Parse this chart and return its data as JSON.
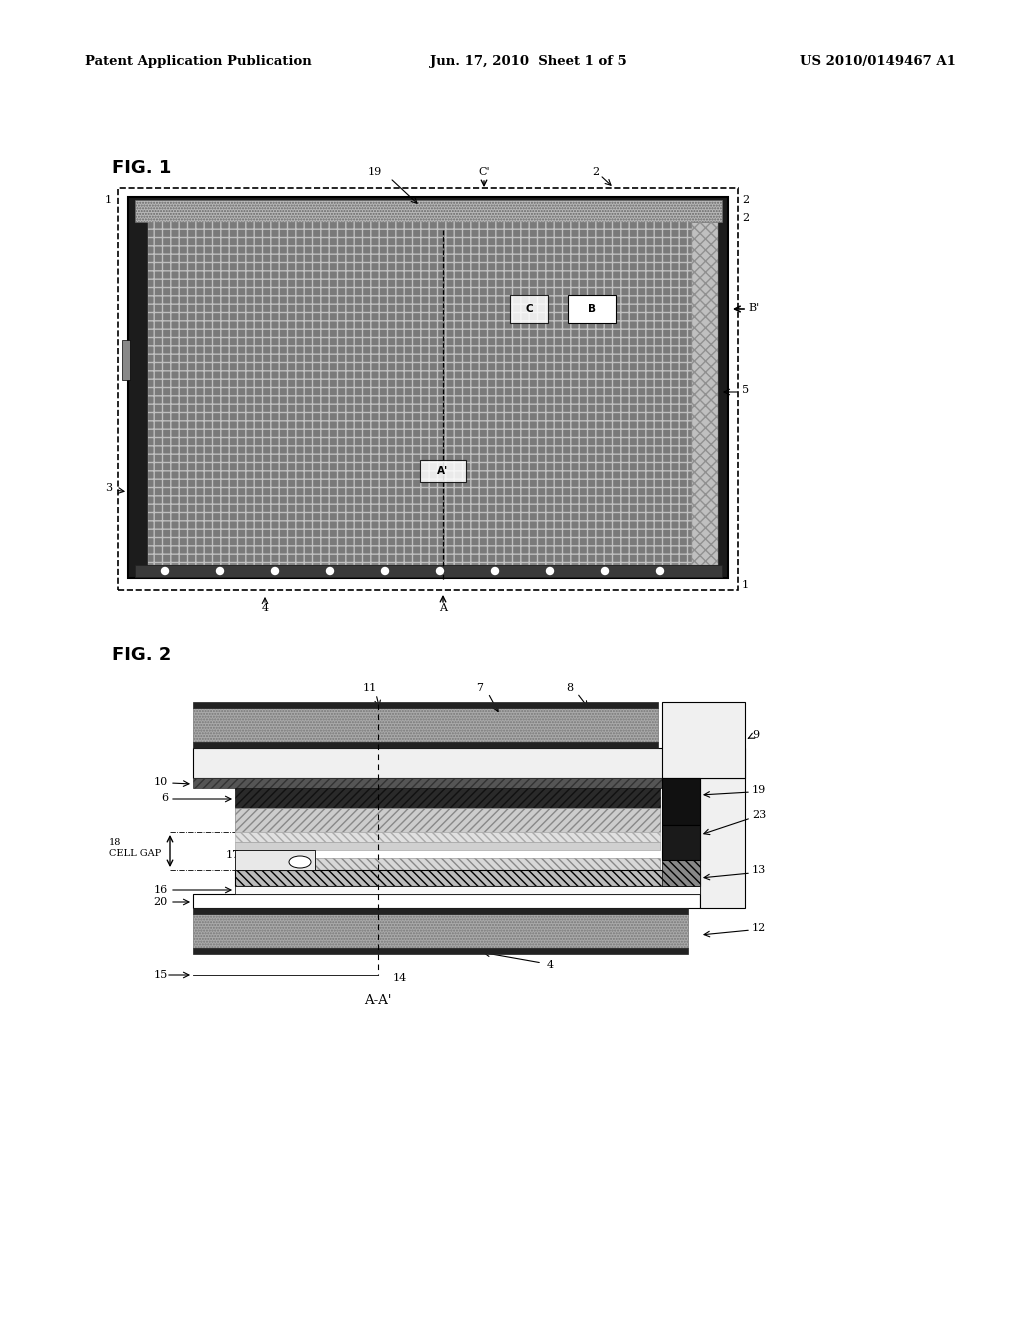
{
  "header_left": "Patent Application Publication",
  "header_center": "Jun. 17, 2010  Sheet 1 of 5",
  "header_right": "US 2010/0149467 A1",
  "fig1_label": "FIG. 1",
  "fig2_label": "FIG. 2",
  "background_color": "#ffffff"
}
